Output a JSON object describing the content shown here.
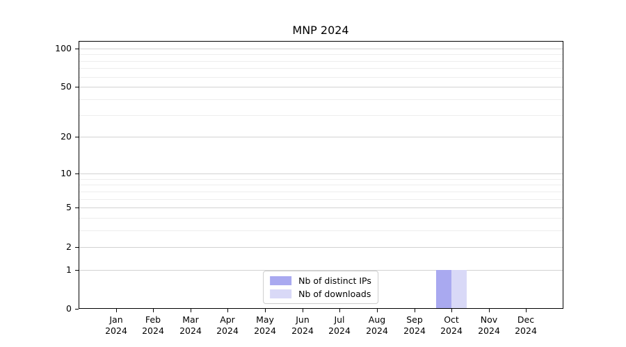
{
  "chart_data": {
    "type": "bar",
    "title": "MNP 2024",
    "x": {
      "categories": [
        "Jan",
        "Feb",
        "Mar",
        "Apr",
        "May",
        "Jun",
        "Jul",
        "Aug",
        "Sep",
        "Oct",
        "Nov",
        "Dec"
      ],
      "sub_label": "2024"
    },
    "y": {
      "scale": "log1p",
      "ticks": [
        0,
        1,
        2,
        5,
        10,
        20,
        50,
        100
      ],
      "minor_ticks": [
        3,
        4,
        6,
        7,
        8,
        9,
        30,
        40,
        60,
        70,
        80,
        90
      ],
      "ylim": [
        0,
        114
      ]
    },
    "series": [
      {
        "name": "Nb of distinct IPs",
        "color": "#a9a9f0",
        "values": [
          0,
          0,
          0,
          0,
          0,
          0,
          0,
          0,
          0,
          1,
          0,
          0
        ]
      },
      {
        "name": "Nb of downloads",
        "color": "#d9d9f7",
        "values": [
          0,
          0,
          0,
          0,
          0,
          0,
          0,
          0,
          0,
          1,
          0,
          0
        ]
      }
    ],
    "legend_position": "lower-center",
    "grid": {
      "major_color": "#d2d2d2",
      "minor_color": "#ededed"
    }
  }
}
